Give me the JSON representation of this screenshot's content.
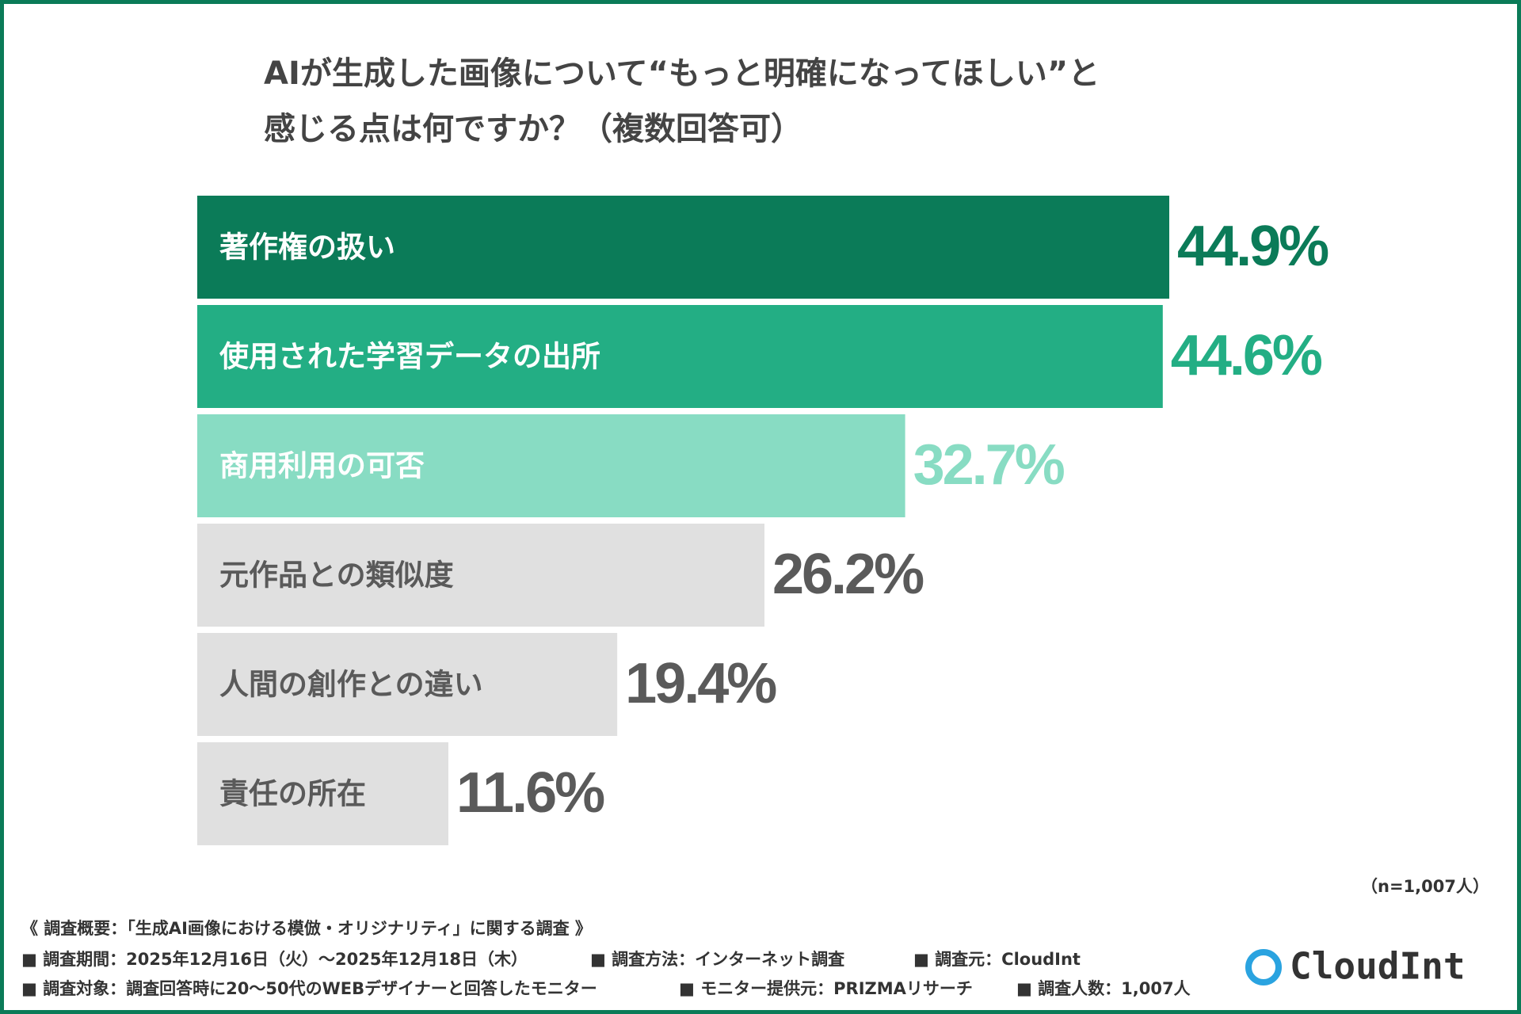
{
  "chart_data": {
    "type": "bar",
    "orientation": "horizontal",
    "title": [
      "AIが生成した画像について“もっと明確になってほしい”と",
      "感じる点は何ですか？（複数回答可）"
    ],
    "categories": [
      "著作権の扱い",
      "使用された学習データの出所",
      "商用利用の可否",
      "元作品との類似度",
      "人間の創作との違い",
      "責任の所在"
    ],
    "values": [
      44.9,
      44.6,
      32.7,
      26.2,
      19.4,
      11.6
    ],
    "value_labels": [
      "44.9%",
      "44.6%",
      "32.7%",
      "26.2%",
      "19.4%",
      "11.6%"
    ],
    "colors": [
      "#0b7b58",
      "#23ae84",
      "#88dcc3",
      "#e0e0e0",
      "#e0e0e0",
      "#e0e0e0"
    ],
    "category_label_colors": [
      "#ffffff",
      "#ffffff",
      "#ffffff",
      "#5a5a5a",
      "#5a5a5a",
      "#5a5a5a"
    ],
    "value_label_colors": [
      "#0b7b58",
      "#23ae84",
      "#88dcc3",
      "#5a5a5a",
      "#5a5a5a",
      "#5a5a5a"
    ]
  },
  "sample_note": "（n=1,007人）",
  "survey": {
    "heading": "《 調査概要：「生成AI画像における模倣・オリジナリティ」に関する調査 》",
    "items": [
      "■ 調査期間：2025年12月16日（火）〜2025年12月18日（木）",
      "■ 調査方法：インターネット調査",
      "■ 調査元：CloudInt",
      "■ 調査対象：調査回答時に20〜50代のWEBデザイナーと回答したモニター",
      "■ モニター提供元：PRIZMAリサーチ",
      "■ 調査人数：1,007人"
    ]
  },
  "logo": "CloudInt"
}
